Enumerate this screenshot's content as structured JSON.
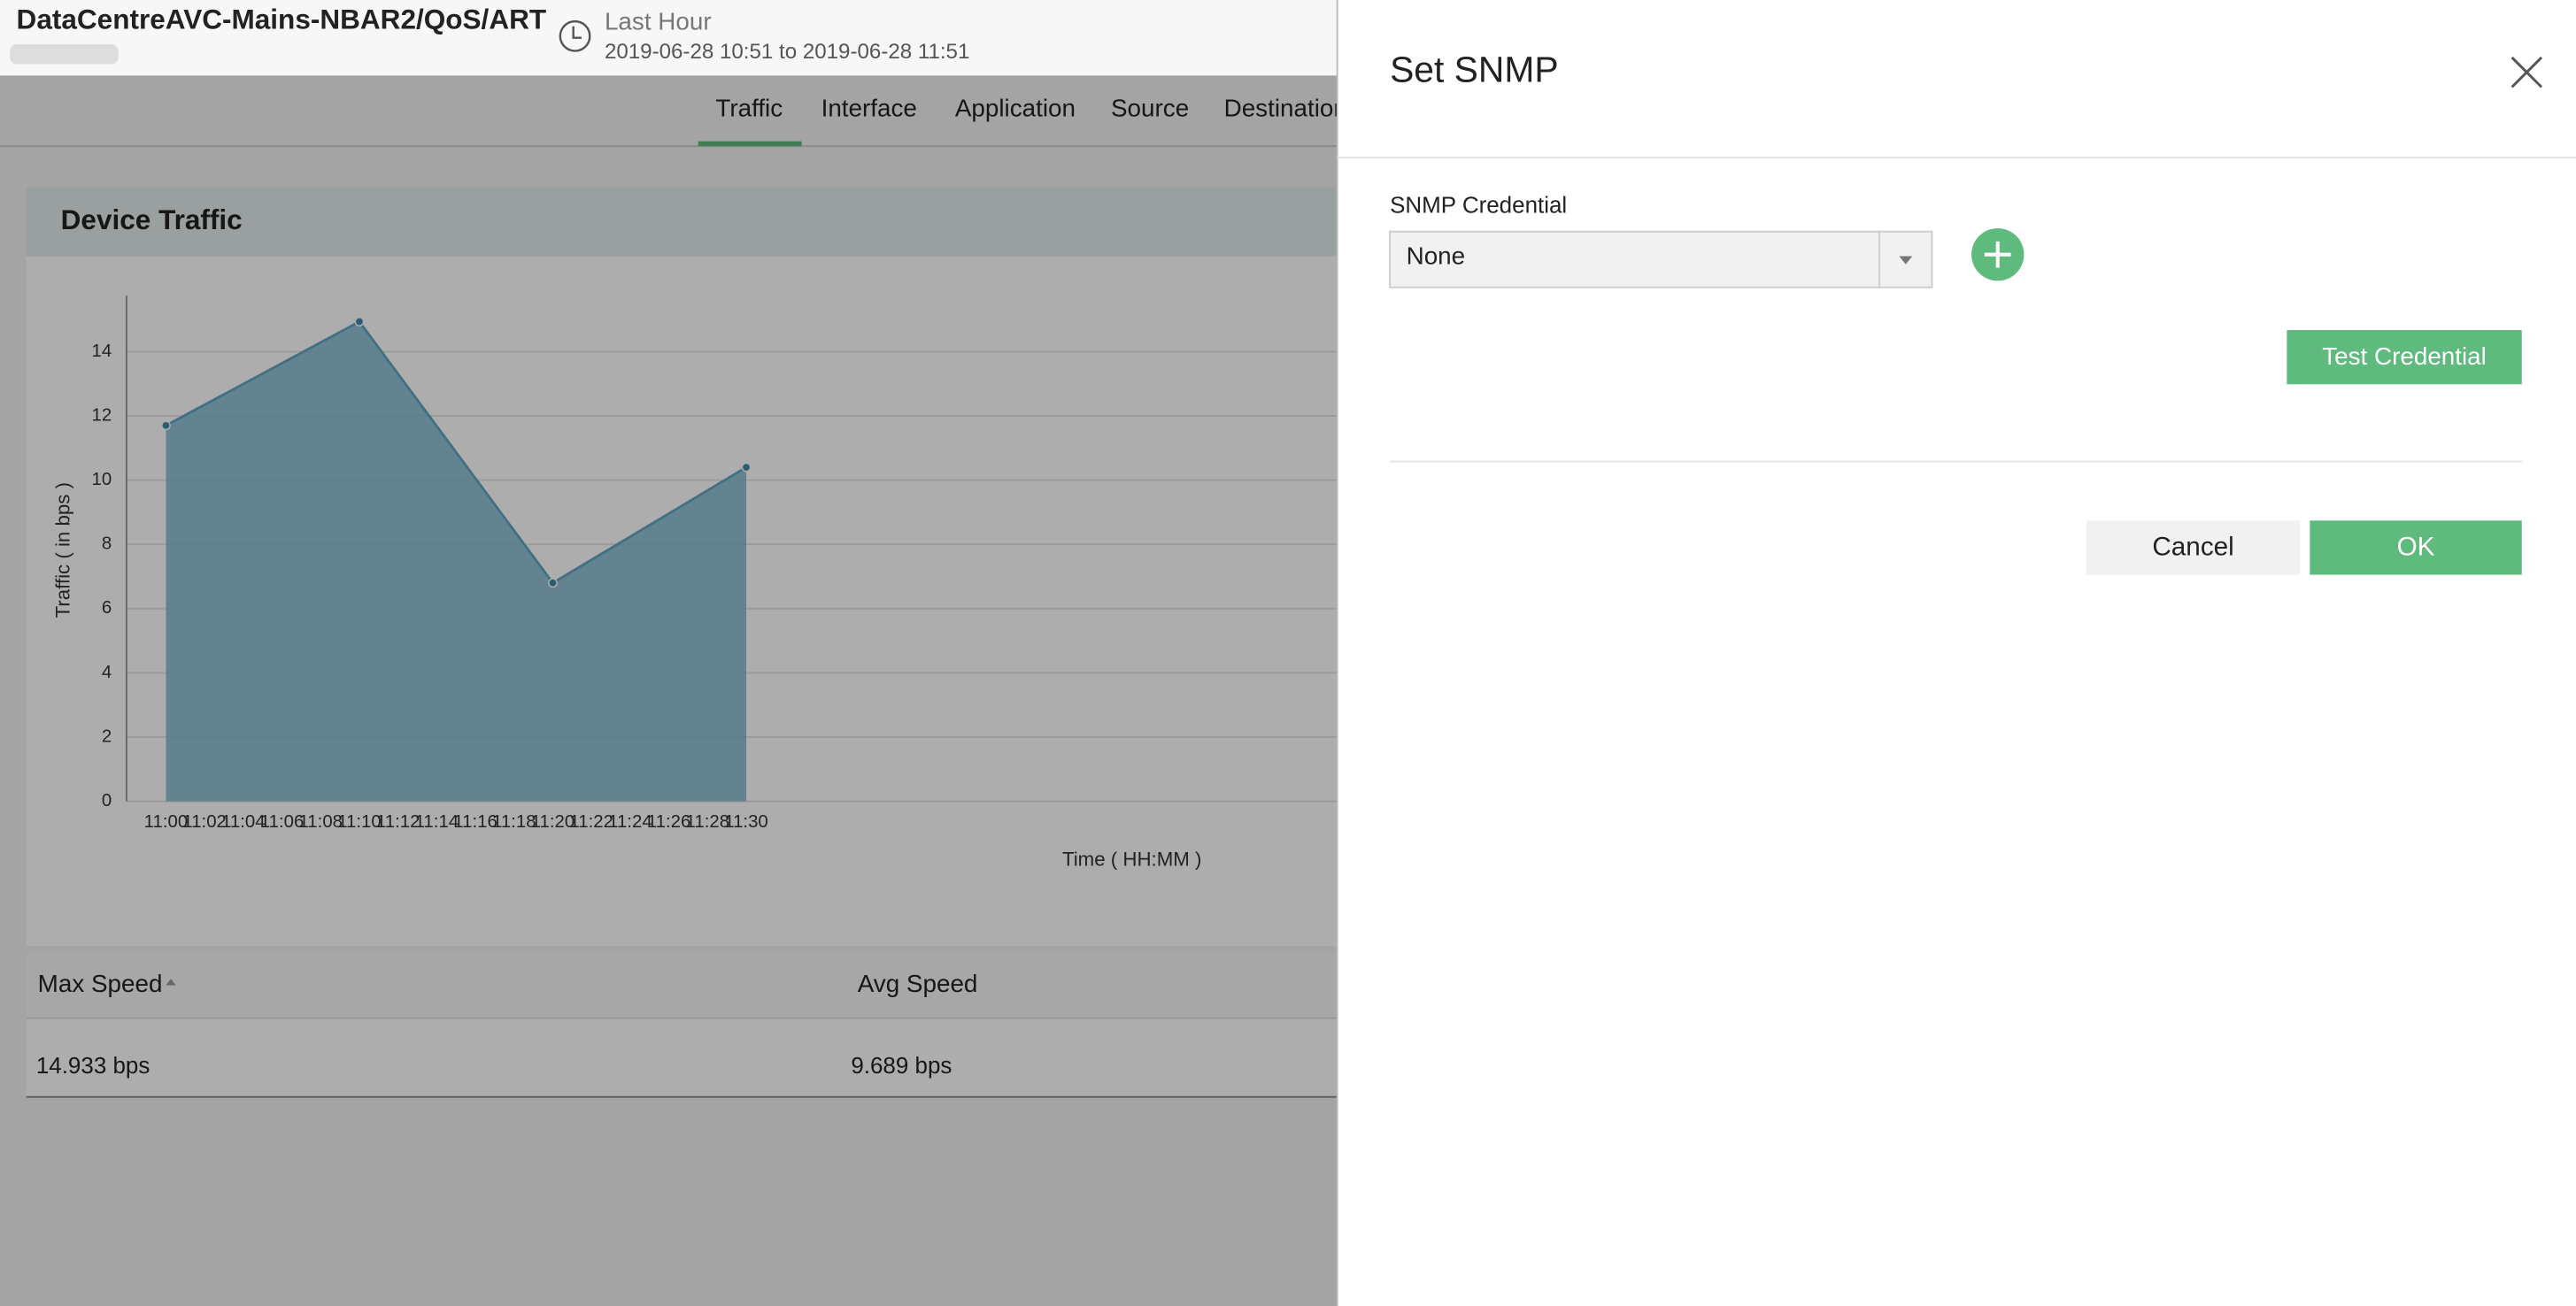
{
  "header": {
    "title": "DataCentreAVC-Mains-NBAR2/QoS/ART",
    "time_range_label": "Last Hour",
    "time_range": "2019-06-28 10:51 to 2019-06-28 11:51"
  },
  "tabs": [
    "Traffic",
    "Interface",
    "Application",
    "Source",
    "Destination"
  ],
  "panel": {
    "title": "Device Traffic",
    "chart": {
      "type": "area",
      "x_label": "Time ( HH:MM )",
      "y_label": "Traffic ( in bps )",
      "categories": [
        "11:00",
        "11:02",
        "11:04",
        "11:06",
        "11:08",
        "11:10",
        "11:12",
        "11:14",
        "11:16",
        "11:18",
        "11:20",
        "11:22",
        "11:24",
        "11:26",
        "11:28",
        "11:30"
      ],
      "x": [
        "11:00",
        "11:10",
        "11:20",
        "11:30"
      ],
      "values": [
        11.7,
        14.933,
        6.8,
        10.4
      ],
      "color": "#7fb6cc",
      "ylim": [
        0,
        16
      ],
      "yticks": [
        0,
        2,
        4,
        6,
        8,
        10,
        12,
        14
      ],
      "grid": true
    },
    "table": {
      "columns": [
        "Max Speed",
        "Avg Speed"
      ],
      "rows": [
        [
          "14.933 bps",
          "9.689 bps"
        ]
      ]
    }
  },
  "dialog": {
    "title": "Set SNMP",
    "field_label": "SNMP Credential",
    "selected": "None",
    "buttons": {
      "test": "Test Credential",
      "cancel": "Cancel",
      "ok": "OK"
    }
  }
}
